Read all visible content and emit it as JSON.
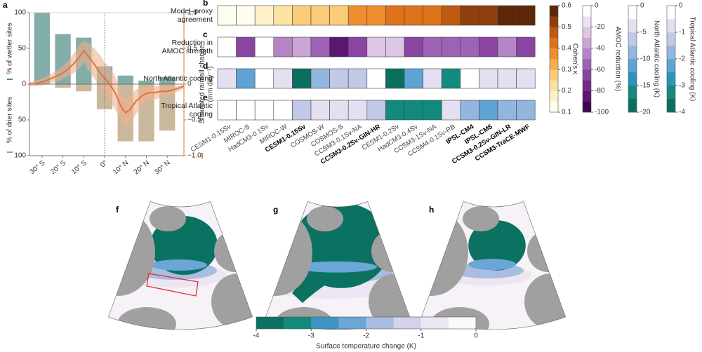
{
  "chart_data": [
    {
      "type": "bar",
      "panel": "a",
      "x": [
        -30,
        -20,
        -10,
        0,
        10,
        20,
        30
      ],
      "series": [
        {
          "name": "% of wetter sites",
          "color": "#4f8a84",
          "values": [
            100,
            70,
            65,
            25,
            12,
            5,
            10
          ]
        },
        {
          "name": "% of drier sites",
          "color": "#b39a72",
          "direction": "down",
          "values": [
            0,
            5,
            10,
            35,
            80,
            80,
            65
          ]
        }
      ],
      "line": {
        "axis": "y2",
        "color": "#e0733a",
        "band_color": "#eeb08f",
        "x": [
          -36,
          -33,
          -30,
          -27,
          -24,
          -21,
          -18,
          -15,
          -12,
          -10,
          -8,
          -5,
          -2,
          0,
          2,
          5,
          8,
          10,
          12,
          15,
          18,
          21,
          24,
          27,
          30,
          33,
          36,
          38
        ],
        "values": [
          0,
          0.01,
          0.03,
          0.06,
          0.1,
          0.14,
          0.2,
          0.28,
          0.38,
          0.47,
          0.4,
          0.28,
          0.15,
          0.08,
          0.02,
          -0.12,
          -0.32,
          -0.4,
          -0.36,
          -0.24,
          -0.16,
          -0.12,
          -0.12,
          -0.1,
          -0.1,
          -0.08,
          -0.05,
          -0.03
        ],
        "upper": [
          0.03,
          0.05,
          0.08,
          0.12,
          0.17,
          0.23,
          0.3,
          0.42,
          0.55,
          0.6,
          0.58,
          0.5,
          0.4,
          0.3,
          0.25,
          0.12,
          -0.12,
          -0.2,
          -0.16,
          -0.08,
          -0.04,
          -0.02,
          -0.03,
          -0.03,
          -0.04,
          -0.03,
          -0.02,
          -0.01
        ],
        "lower": [
          -0.03,
          -0.03,
          -0.02,
          0,
          0.03,
          0.06,
          0.1,
          0.15,
          0.22,
          0.3,
          0.2,
          0.08,
          -0.05,
          -0.12,
          -0.2,
          -0.35,
          -0.52,
          -0.6,
          -0.56,
          -0.42,
          -0.3,
          -0.25,
          -0.22,
          -0.18,
          -0.16,
          -0.13,
          -0.09,
          -0.06
        ]
      },
      "xlim": [
        -36,
        38
      ],
      "xticks": [
        {
          "value": -30,
          "label": "30° S"
        },
        {
          "value": -20,
          "label": "20° S"
        },
        {
          "value": -10,
          "label": "10° S"
        },
        {
          "value": 0,
          "label": "0°"
        },
        {
          "value": 10,
          "label": "10° N"
        },
        {
          "value": 20,
          "label": "20° N"
        },
        {
          "value": 30,
          "label": "30° N"
        }
      ],
      "ylim": [
        -100,
        100
      ],
      "yticks": [
        {
          "value": -100,
          "label": "100"
        },
        {
          "value": -50,
          "label": "50"
        },
        0,
        50,
        100
      ],
      "y2lim": [
        -1,
        1
      ],
      "y2ticks": [
        {
          "value": -1,
          "label": "−1.0"
        },
        {
          "value": -0.5,
          "label": "−0.5"
        },
        0,
        0.5,
        {
          "value": 1,
          "label": "1.0"
        }
      ],
      "y2label": [
        "Simulated rainfall change",
        "(mm day⁻¹)"
      ]
    },
    {
      "type": "heatmap",
      "columns": [
        "CESM1-0.15Sv",
        "MIROC-S",
        "HadCM3-0.1Sv",
        "MIROC-W",
        "CESM1-0.15Sv",
        "COSMOS-W",
        "COSMOS-S",
        "CCSM3-0.1Sv-NA",
        "CCSM3-0.2Sv-GIN-HR",
        "CESM1-0.2Sv",
        "HadCM3-0.4Sv",
        "CCSM3-1Sv-NA",
        "CCSM4-0.1Sv-RB",
        "IPSL-CM4",
        "IPSL-CM5",
        "CCSM3-0.2Sv-GIN-LR",
        "CCSM3-TraCE-MWF"
      ],
      "column_bold": [
        false,
        false,
        false,
        false,
        true,
        false,
        false,
        false,
        true,
        false,
        false,
        false,
        false,
        true,
        true,
        true,
        true
      ],
      "rows": [
        {
          "panel": "b",
          "label": [
            "Model–proxy",
            "agreement"
          ],
          "values": [
            0.1,
            0.15,
            0.17,
            0.22,
            0.25,
            0.27,
            0.28,
            0.38,
            0.38,
            0.4,
            0.42,
            0.42,
            0.45,
            0.52,
            0.53,
            0.56,
            0.6
          ],
          "colorbar": {
            "label": "Cohen's κ",
            "ylim": [
              0.1,
              0.6
            ],
            "ticks": [
              0.1,
              0.2,
              0.3,
              0.4,
              0.5,
              0.6
            ],
            "colors": [
              "#fffdf0",
              "#fff2c8",
              "#fde3a2",
              "#fbcb78",
              "#f7ad52",
              "#ef8e2e",
              "#dd7219",
              "#bf5a10",
              "#8f3f0b",
              "#5c2707"
            ]
          }
        },
        {
          "panel": "c",
          "label": [
            "Reduction in",
            "AMOC strength"
          ],
          "values": [
            -10,
            -70,
            -5,
            -50,
            -40,
            -60,
            -90,
            -70,
            -30,
            -30,
            -70,
            -60,
            -60,
            -60,
            -65,
            -50,
            -70
          ],
          "colorbar": {
            "label": "AMOC reduction (%)",
            "ylim": [
              -100,
              0
            ],
            "ticks": [
              0,
              -20,
              -40,
              -60,
              -80,
              -100
            ],
            "colors": [
              "#3b0750",
              "#5a1772",
              "#73288a",
              "#8a45a2",
              "#9e62b4",
              "#b584c6",
              "#cba5d6",
              "#ddc5e5",
              "#eee1f2",
              "#ffffff"
            ]
          }
        },
        {
          "panel": "d",
          "label": [
            "North Atlantic cooling"
          ],
          "values": [
            -5,
            -12,
            -1,
            -4,
            -18,
            -10,
            -7,
            -6,
            -2,
            -18,
            -12,
            -5,
            -16,
            -2,
            -3,
            -5,
            -5
          ],
          "colorbar": {
            "label": "North Atlantic cooling (K)",
            "ylim": [
              -20,
              0
            ],
            "ticks": [
              0,
              -5,
              -10,
              -15,
              -20
            ],
            "colors": [
              "#0b6f60",
              "#138a7e",
              "#2f93b8",
              "#5ea3d4",
              "#93b6de",
              "#c2c9e7",
              "#e4e0f1",
              "#ffffff"
            ]
          }
        },
        {
          "panel": "e",
          "label": [
            "Tropical Atlantic",
            "cooling"
          ],
          "values": [
            -0.3,
            -0.3,
            -0.2,
            -0.3,
            -1.5,
            -0.8,
            -0.8,
            -1.0,
            -1.5,
            -3.5,
            -3.5,
            -3.5,
            -0.8,
            -2.0,
            -2.3,
            -2.0,
            -2.0
          ],
          "colorbar": {
            "label": "Tropical Atlantic cooling (K)",
            "ylim": [
              -4,
              0
            ],
            "ticks": [
              0,
              -1,
              -2,
              -3,
              -4
            ],
            "colors": [
              "#0b6f60",
              "#138a7e",
              "#2f93b8",
              "#5ea3d4",
              "#93b6de",
              "#c2c9e7",
              "#e4e0f1",
              "#ffffff"
            ]
          }
        }
      ]
    },
    {
      "type": "colorbar",
      "panels": [
        "f",
        "g",
        "h"
      ],
      "label": "Surface temperature change (K)",
      "xlim": [
        -4,
        0
      ],
      "xticks": [
        -4,
        -3,
        -2,
        -1,
        0
      ],
      "colors": [
        "#0b7161",
        "#138a7e",
        "#3e94c4",
        "#6aa6d6",
        "#a9bde0",
        "#d2d2ea",
        "#ebe6f2",
        "#fbf9fc"
      ]
    }
  ]
}
